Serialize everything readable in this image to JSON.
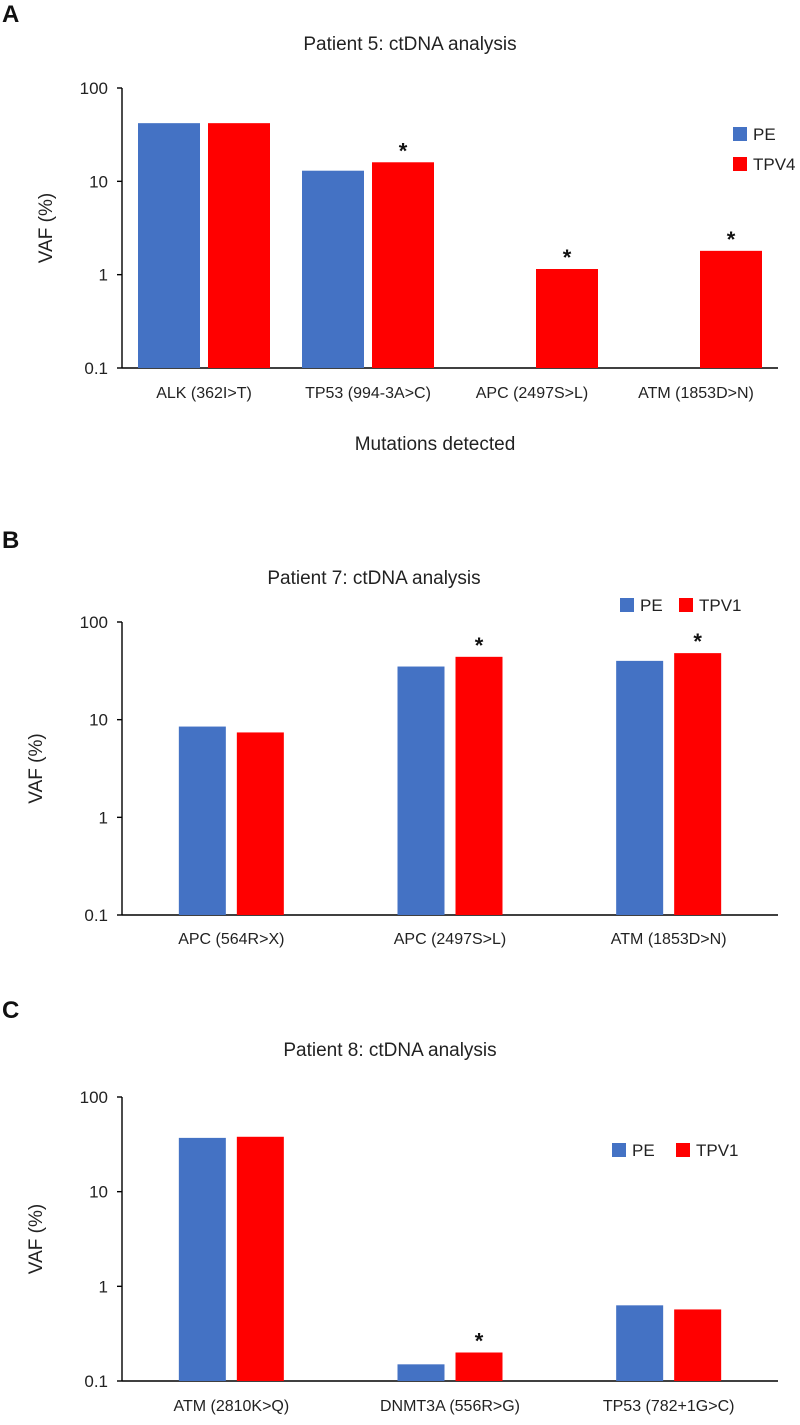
{
  "chart_data": [
    {
      "type": "bar",
      "panel": "A",
      "title": "Patient 5: ctDNA analysis",
      "xlabel": "Mutations detected",
      "ylabel": "VAF (%)",
      "yscale": "log",
      "ylim": [
        0.1,
        100
      ],
      "yticks": [
        "100",
        "10",
        "1",
        "0.1"
      ],
      "categories": [
        "ALK (362I>T)",
        "TP53 (994-3A>C)",
        "APC (2497S>L)",
        "ATM (1853D>N)"
      ],
      "series": [
        {
          "name": "PE",
          "color": "#4472C4",
          "values": [
            42,
            13,
            null,
            null
          ]
        },
        {
          "name": "TPV4",
          "color": "#FF0000",
          "values": [
            42,
            16,
            1.15,
            1.8
          ]
        }
      ],
      "significance_marker": "*",
      "significant": [
        false,
        true,
        true,
        true
      ],
      "legend": "right-stacked"
    },
    {
      "type": "bar",
      "panel": "B",
      "title": "Patient 7: ctDNA analysis",
      "xlabel": "",
      "ylabel": "VAF (%)",
      "yscale": "log",
      "ylim": [
        0.1,
        100
      ],
      "yticks": [
        "100",
        "10",
        "1",
        "0.1"
      ],
      "categories": [
        "APC (564R>X)",
        "APC (2497S>L)",
        "ATM (1853D>N)"
      ],
      "series": [
        {
          "name": "PE",
          "color": "#4472C4",
          "values": [
            8.5,
            35,
            40
          ]
        },
        {
          "name": "TPV1",
          "color": "#FF0000",
          "values": [
            7.4,
            44,
            48
          ]
        }
      ],
      "significance_marker": "*",
      "significant": [
        false,
        true,
        true
      ],
      "legend": "top-right"
    },
    {
      "type": "bar",
      "panel": "C",
      "title": "Patient 8: ctDNA analysis",
      "xlabel": "",
      "ylabel": "VAF (%)",
      "yscale": "log",
      "ylim": [
        0.1,
        100
      ],
      "yticks": [
        "100",
        "10",
        "1",
        "0.1"
      ],
      "categories": [
        "ATM (2810K>Q)",
        "DNMT3A (556R>G)",
        "TP53 (782+1G>C)"
      ],
      "series": [
        {
          "name": "PE",
          "color": "#4472C4",
          "values": [
            37,
            0.15,
            0.63
          ]
        },
        {
          "name": "TPV1",
          "color": "#FF0000",
          "values": [
            38,
            0.2,
            0.57
          ]
        }
      ],
      "significance_marker": "*",
      "significant": [
        false,
        true,
        false
      ],
      "legend": "right"
    }
  ]
}
